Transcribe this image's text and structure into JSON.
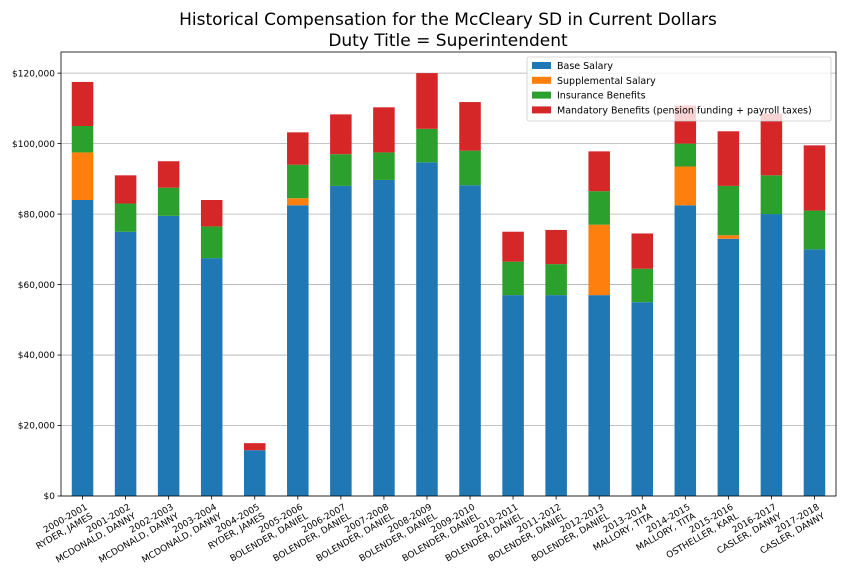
{
  "chart_data": {
    "type": "bar",
    "stacked": true,
    "title": [
      "Historical Compensation for the McCleary SD in Current Dollars",
      "Duty Title = Superintendent"
    ],
    "xlabel": "",
    "ylabel": "",
    "ylim": [
      0,
      126000
    ],
    "yticks": [
      0,
      20000,
      40000,
      60000,
      80000,
      100000,
      120000
    ],
    "ytick_labels": [
      "$0",
      "$20,000",
      "$40,000",
      "$60,000",
      "$80,000",
      "$100,000",
      "$120,000"
    ],
    "grid": "horizontal",
    "legend_position": "top-right",
    "categories": [
      [
        "2000-2001",
        "RYDER, JAMES"
      ],
      [
        "2001-2002",
        "MCDONALD, DANNY"
      ],
      [
        "2002-2003",
        "MCDONALD, DANNY"
      ],
      [
        "2003-2004",
        "MCDONALD, DANNY"
      ],
      [
        "2004-2005",
        "RYDER, JAMES"
      ],
      [
        "2005-2006",
        "BOLENDER, DANIEL"
      ],
      [
        "2006-2007",
        "BOLENDER, DANIEL"
      ],
      [
        "2007-2008",
        "BOLENDER, DANIEL"
      ],
      [
        "2008-2009",
        "BOLENDER, DANIEL"
      ],
      [
        "2009-2010",
        "BOLENDER, DANIEL"
      ],
      [
        "2010-2011",
        "BOLENDER, DANIEL"
      ],
      [
        "2011-2012",
        "BOLENDER, DANIEL"
      ],
      [
        "2012-2013",
        "BOLENDER, DANIEL"
      ],
      [
        "2013-2014",
        "MALLORY, TITA"
      ],
      [
        "2014-2015",
        "MALLORY, TITA"
      ],
      [
        "2015-2016",
        "OSTHELLER, KARL"
      ],
      [
        "2016-2017",
        "CASLER, DANNY"
      ],
      [
        "2017-2018",
        "CASLER, DANNY"
      ]
    ],
    "series": [
      {
        "name": "Base Salary",
        "color": "#1f77b4",
        "values": [
          84000,
          75000,
          79500,
          67500,
          13000,
          82500,
          88000,
          89700,
          94700,
          88200,
          57000,
          57000,
          57000,
          55000,
          82500,
          73000,
          80000,
          70000
        ]
      },
      {
        "name": "Supplemental Salary",
        "color": "#ff7f0e",
        "values": [
          13500,
          0,
          0,
          0,
          0,
          2000,
          0,
          0,
          0,
          0,
          0,
          0,
          20000,
          0,
          11000,
          1000,
          0,
          0
        ]
      },
      {
        "name": "Insurance Benefits",
        "color": "#2ca02c",
        "values": [
          7500,
          8000,
          8000,
          9000,
          0,
          9500,
          9000,
          7800,
          9500,
          9800,
          9500,
          8800,
          9500,
          9500,
          6500,
          14000,
          11000,
          11000
        ]
      },
      {
        "name": "Mandatory Benefits (pension funding + payroll taxes)",
        "color": "#d62728",
        "values": [
          12500,
          8000,
          7500,
          7500,
          2000,
          9200,
          11300,
          12800,
          15800,
          13800,
          8500,
          9700,
          11300,
          10000,
          10800,
          15500,
          17500,
          18500
        ]
      }
    ]
  }
}
